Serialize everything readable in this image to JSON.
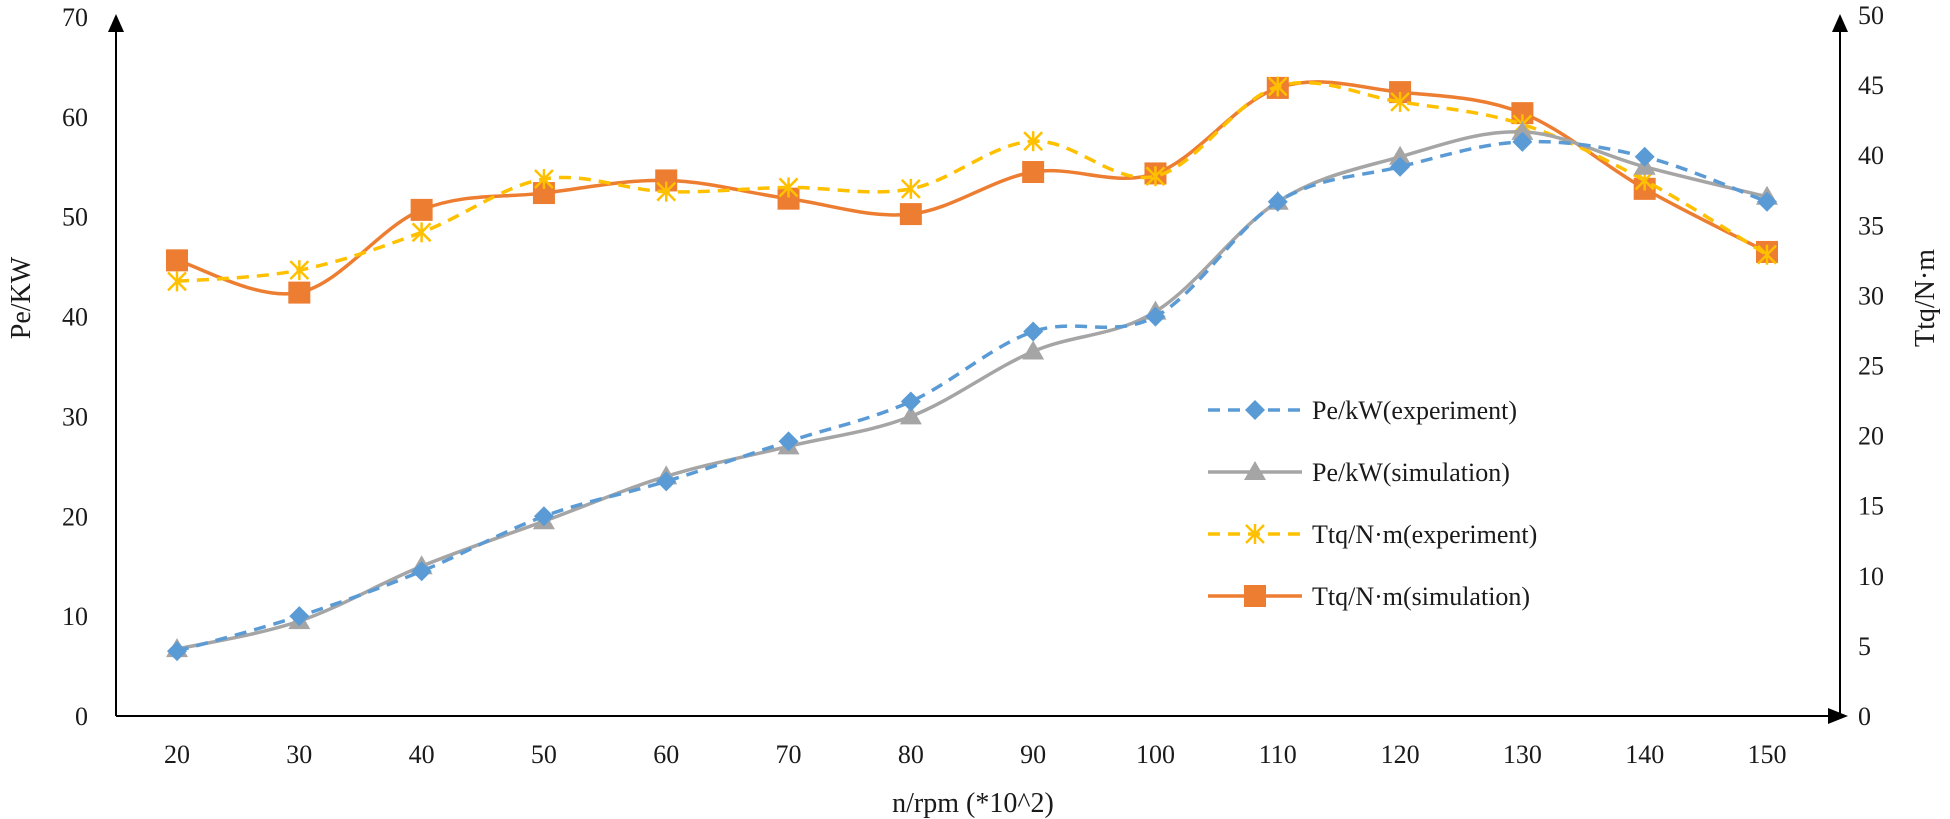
{
  "chart_data": {
    "type": "line",
    "title": "",
    "xlabel": "n/rpm (*10^2)",
    "ylabel_left": "Pe/KW",
    "ylabel_right": "Ttq/N·m",
    "categories": [
      20,
      30,
      40,
      50,
      60,
      70,
      80,
      90,
      100,
      110,
      120,
      130,
      140,
      150
    ],
    "ylim_left": [
      0,
      70
    ],
    "ylim_right": [
      0,
      50
    ],
    "yticks_left": [
      0,
      10,
      20,
      30,
      40,
      50,
      60,
      70
    ],
    "yticks_right": [
      0,
      5,
      10,
      15,
      20,
      25,
      30,
      35,
      40,
      45,
      50
    ],
    "grid": false,
    "legend_position": "center-right",
    "series": [
      {
        "name": "Pe/kW(experiment)",
        "axis": "left",
        "color": "#5b9bd5",
        "line": "dashed",
        "marker": "diamond",
        "values": [
          6.5,
          10.0,
          14.5,
          20.0,
          23.5,
          27.5,
          31.5,
          38.5,
          40.0,
          51.5,
          55.0,
          57.5,
          56.0,
          51.5
        ]
      },
      {
        "name": "Pe/kW(simulation)",
        "axis": "left",
        "color": "#a5a5a5",
        "line": "solid",
        "marker": "triangle",
        "values": [
          6.7,
          9.5,
          15.0,
          19.5,
          24.0,
          27.0,
          30.0,
          36.5,
          40.5,
          51.5,
          56.0,
          58.5,
          55.0,
          52.0
        ]
      },
      {
        "name": "Ttq/N·m(experiment)",
        "axis": "right",
        "color": "#ffc000",
        "line": "dashed",
        "marker": "star",
        "values": [
          31.0,
          31.8,
          34.5,
          38.3,
          37.4,
          37.7,
          37.6,
          41.0,
          38.5,
          44.9,
          43.8,
          42.2,
          38.2,
          32.9
        ]
      },
      {
        "name": "Ttq/N·m(simulation)",
        "axis": "right",
        "color": "#ed7d31",
        "line": "solid",
        "marker": "square",
        "values": [
          32.5,
          30.2,
          36.1,
          37.3,
          38.2,
          36.9,
          35.8,
          38.8,
          38.7,
          44.8,
          44.5,
          43.0,
          37.6,
          33.1
        ]
      }
    ]
  }
}
